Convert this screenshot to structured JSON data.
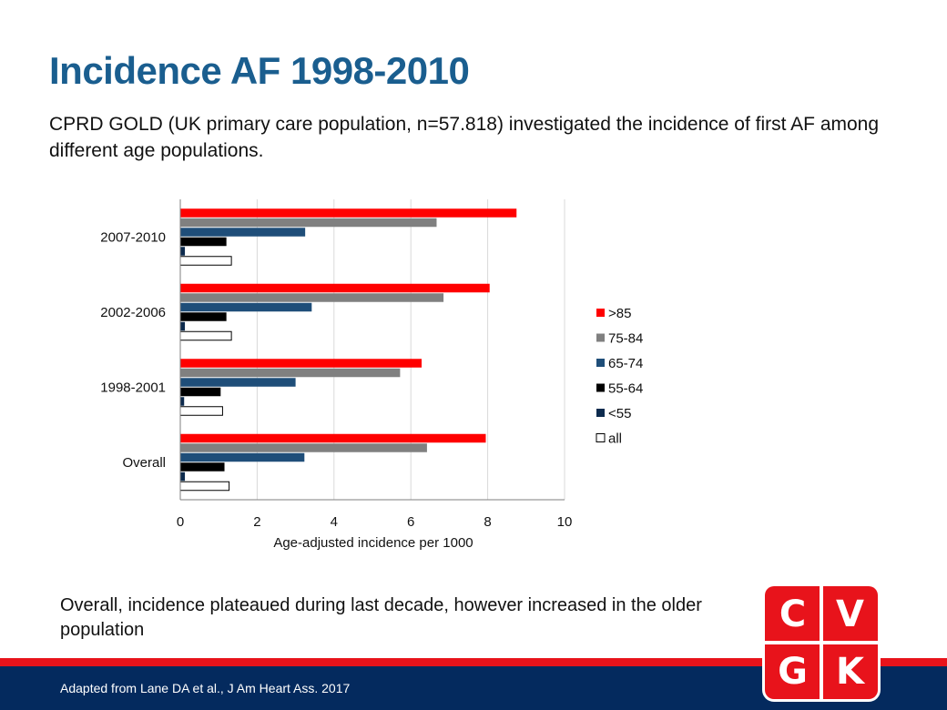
{
  "slide": {
    "title": "Incidence AF 1998-2010",
    "intro": "CPRD GOLD (UK primary care population, n=57.818) investigated the incidence of first AF among different age populations.",
    "conclusion": "Overall, incidence plateaued during last decade, however increased in the older population",
    "citation": "Adapted from Lane DA  et al., J Am Heart Ass. 2017"
  },
  "logo": {
    "letters": [
      "C",
      "V",
      "G",
      "K"
    ],
    "color": "#e8131b"
  },
  "chart_data": {
    "type": "bar",
    "orientation": "horizontal",
    "categories": [
      "2007-2010",
      "2002-2006",
      "1998-2001",
      "Overall"
    ],
    "xlabel": "Age-adjusted incidence per 1000",
    "ylabel": "",
    "xlim": [
      0,
      10
    ],
    "xticks": [
      "0",
      "2",
      "4",
      "6",
      "8",
      "10"
    ],
    "grid": "vertical",
    "legend_position": "right",
    "series": [
      {
        "name": ">85",
        "color": "#ff0000",
        "values": [
          8.75,
          8.05,
          6.28,
          7.95
        ]
      },
      {
        "name": "75-84",
        "color": "#808080",
        "values": [
          6.67,
          6.85,
          5.72,
          6.42
        ]
      },
      {
        "name": "65-74",
        "color": "#1f4e79",
        "values": [
          3.25,
          3.42,
          3.0,
          3.23
        ]
      },
      {
        "name": "55-64",
        "color": "#000000",
        "values": [
          1.2,
          1.2,
          1.05,
          1.15
        ]
      },
      {
        "name": "<55",
        "color": "#0d2b4e",
        "values": [
          0.12,
          0.12,
          0.1,
          0.12
        ]
      },
      {
        "name": "all",
        "color": "#ffffff",
        "values": [
          1.33,
          1.33,
          1.1,
          1.27
        ]
      }
    ]
  }
}
